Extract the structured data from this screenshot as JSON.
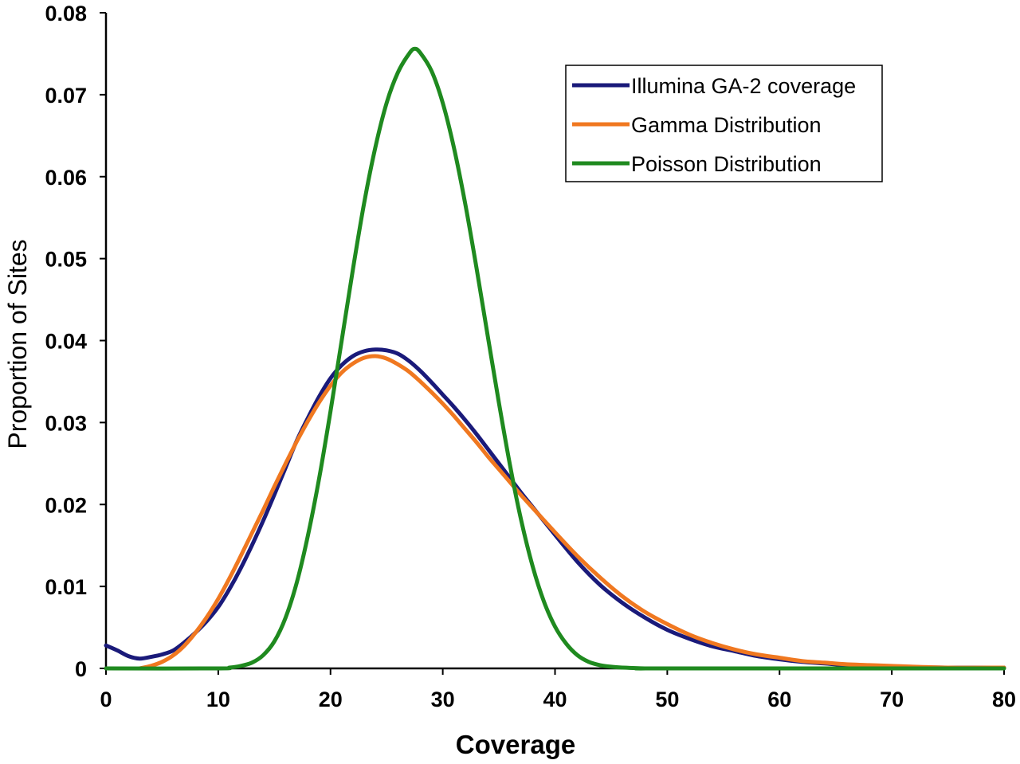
{
  "chart_data": {
    "type": "line",
    "title": "",
    "xlabel": "Coverage",
    "ylabel": "Proportion of Sites",
    "xlim": [
      0,
      80
    ],
    "ylim": [
      0,
      0.08
    ],
    "xticks": [
      0,
      10,
      20,
      30,
      40,
      50,
      60,
      70,
      80
    ],
    "yticks": [
      0,
      0.01,
      0.02,
      0.03,
      0.04,
      0.05,
      0.06,
      0.07,
      0.08
    ],
    "xtick_labels": [
      "0",
      "10",
      "20",
      "30",
      "40",
      "50",
      "60",
      "70",
      "80"
    ],
    "ytick_labels": [
      "0",
      "0.01",
      "0.02",
      "0.03",
      "0.04",
      "0.05",
      "0.06",
      "0.07",
      "0.08"
    ],
    "grid": false,
    "legend_position": "top-right",
    "series": [
      {
        "name": "Illumina GA-2 coverage",
        "color": "#1a1a7a",
        "x": [
          0,
          1,
          2,
          3,
          4,
          5,
          6,
          7,
          8,
          9,
          10,
          11,
          12,
          13,
          14,
          15,
          16,
          17,
          18,
          19,
          20,
          21,
          22,
          23,
          24,
          25,
          26,
          27,
          28,
          29,
          30,
          31,
          32,
          33,
          34,
          35,
          36,
          37,
          38,
          39,
          40,
          42,
          44,
          46,
          48,
          50,
          52,
          54,
          56,
          58,
          60,
          62,
          64,
          66,
          68,
          70,
          75,
          80
        ],
        "y": [
          0.0028,
          0.0022,
          0.0015,
          0.0012,
          0.0014,
          0.0017,
          0.0022,
          0.0032,
          0.0044,
          0.0058,
          0.0075,
          0.0097,
          0.0122,
          0.015,
          0.018,
          0.0212,
          0.0245,
          0.0278,
          0.0306,
          0.0332,
          0.0354,
          0.037,
          0.0381,
          0.0387,
          0.0389,
          0.0388,
          0.0384,
          0.0375,
          0.0363,
          0.0349,
          0.0334,
          0.0319,
          0.0303,
          0.0286,
          0.0268,
          0.025,
          0.0232,
          0.0214,
          0.0197,
          0.018,
          0.0163,
          0.013,
          0.0102,
          0.008,
          0.0062,
          0.0047,
          0.0036,
          0.0027,
          0.0021,
          0.0015,
          0.0011,
          0.0008,
          0.0006,
          0.0004,
          0.0003,
          0.0002,
          0.0001,
          0.0001
        ]
      },
      {
        "name": "Gamma Distribution",
        "color": "#f07820",
        "x": [
          3,
          4,
          5,
          6,
          7,
          8,
          9,
          10,
          11,
          12,
          13,
          14,
          15,
          16,
          17,
          18,
          19,
          20,
          21,
          22,
          23,
          24,
          25,
          26,
          27,
          28,
          29,
          30,
          31,
          32,
          33,
          34,
          35,
          36,
          37,
          38,
          39,
          40,
          42,
          44,
          46,
          48,
          50,
          52,
          54,
          56,
          58,
          60,
          62,
          64,
          66,
          68,
          70,
          75,
          80
        ],
        "y": [
          0.0,
          0.0003,
          0.0008,
          0.0016,
          0.0028,
          0.0044,
          0.0063,
          0.0085,
          0.011,
          0.0137,
          0.0165,
          0.0193,
          0.0222,
          0.025,
          0.0277,
          0.0302,
          0.0325,
          0.0345,
          0.0361,
          0.0372,
          0.0379,
          0.0381,
          0.0378,
          0.0371,
          0.0362,
          0.035,
          0.0337,
          0.0323,
          0.0308,
          0.0292,
          0.0276,
          0.0259,
          0.0243,
          0.0227,
          0.0211,
          0.0196,
          0.0181,
          0.0166,
          0.0137,
          0.0111,
          0.0088,
          0.0069,
          0.0054,
          0.0041,
          0.0031,
          0.0023,
          0.0017,
          0.0013,
          0.0009,
          0.0007,
          0.0005,
          0.0004,
          0.0003,
          0.0001,
          0.0001
        ]
      },
      {
        "name": "Poisson Distribution",
        "color": "#1f8a1f",
        "x": [
          0,
          10,
          11,
          12,
          13,
          14,
          15,
          16,
          17,
          18,
          19,
          20,
          21,
          22,
          23,
          24,
          25,
          26,
          27,
          27.5,
          28,
          29,
          30,
          31,
          32,
          33,
          34,
          35,
          36,
          37,
          38,
          39,
          40,
          41,
          42,
          43,
          44,
          45,
          46,
          48,
          50,
          80
        ],
        "y": [
          0.0,
          0.0,
          0.0001,
          0.0003,
          0.0007,
          0.0016,
          0.0033,
          0.0062,
          0.0105,
          0.0163,
          0.0233,
          0.0314,
          0.04,
          0.0487,
          0.0568,
          0.0636,
          0.069,
          0.0727,
          0.075,
          0.0756,
          0.0751,
          0.0729,
          0.069,
          0.0635,
          0.0567,
          0.0489,
          0.0406,
          0.0324,
          0.0247,
          0.018,
          0.0125,
          0.0082,
          0.0051,
          0.003,
          0.0016,
          0.0008,
          0.0004,
          0.0002,
          0.0001,
          0.0,
          0.0,
          0.0
        ]
      }
    ]
  }
}
